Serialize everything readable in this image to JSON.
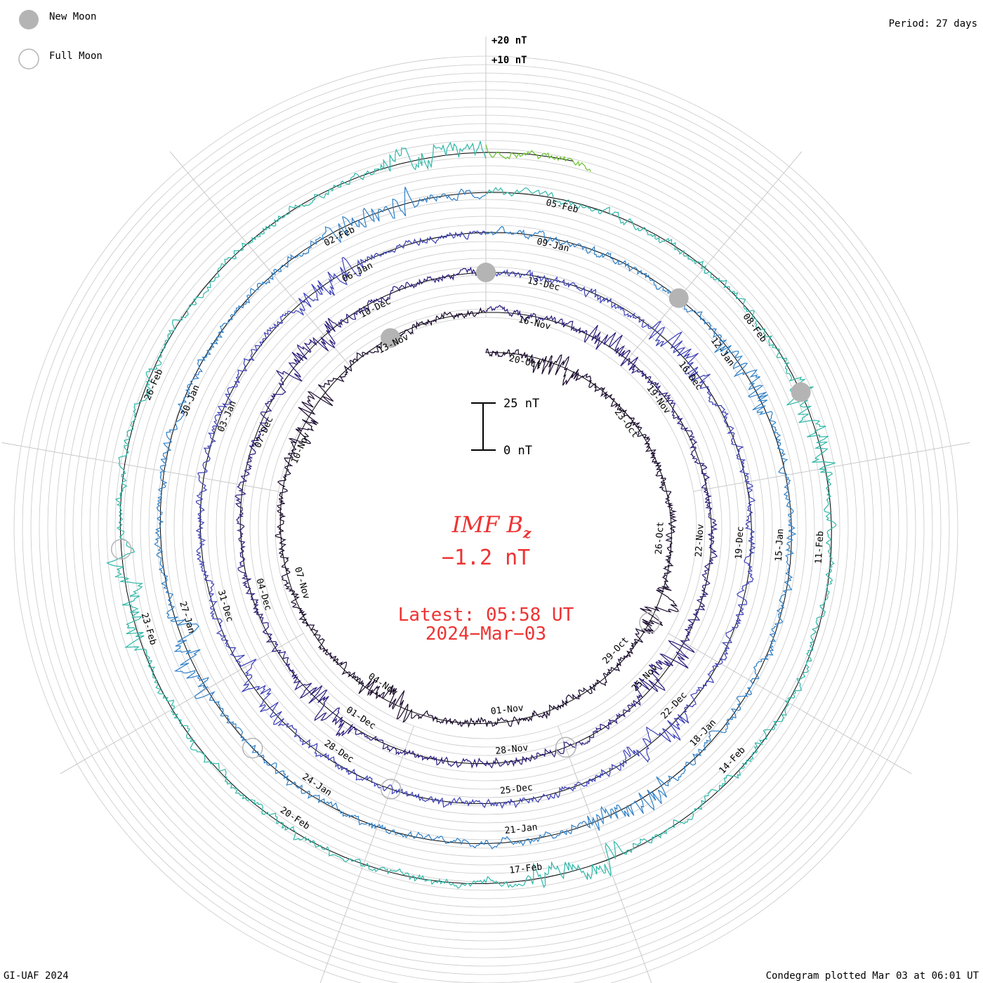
{
  "legend": {
    "new_moon": "New Moon",
    "full_moon": "Full Moon",
    "new_moon_color": "#b4b4b4",
    "full_moon_color": "#b4b4b4"
  },
  "period_label": "Period: 27 days",
  "footer_left": "GI-UAF 2024",
  "footer_right": "Condegram plotted Mar 03 at 06:01 UT",
  "center": {
    "title": "IMF B",
    "title_sub": "z",
    "value": "−1.2 nT",
    "latest": "Latest: 05:58 UT",
    "date": "2024−Mar−03",
    "accent": "#ee3333"
  },
  "chart_data": {
    "type": "line",
    "subtype": "condegram spiral",
    "title": "IMF Bz",
    "units": "nT",
    "period_days": 27,
    "start": "2023-10-19",
    "end": "2024-03-03T05:58",
    "latest_value": -1.2,
    "scale_bar": {
      "low": "0 nT",
      "high": "25 nT",
      "low_value": 0,
      "high_value": 25
    },
    "ring_ticks": [
      {
        "label": "+20 nT",
        "value": 20
      },
      {
        "label": "+10 nT",
        "value": 10
      }
    ],
    "colors": [
      "#1a0a2e",
      "#2a1a7a",
      "#3b3fb8",
      "#2e80c8",
      "#2eb8a8",
      "#6cc02e",
      "#b8a020",
      "#b87818",
      "#c06010",
      "#c82010"
    ],
    "date_labels": [
      "20-Oct",
      "23-Oct",
      "26-Oct",
      "29-Oct",
      "01-Nov",
      "04-Nov",
      "07-Nov",
      "10-Nov",
      "13-Nov",
      "16-Nov",
      "19-Nov",
      "22-Nov",
      "25-Nov",
      "28-Nov",
      "01-Dec",
      "04-Dec",
      "07-Dec",
      "10-Dec",
      "13-Dec",
      "16-Dec",
      "19-Dec",
      "22-Dec",
      "25-Dec",
      "28-Dec",
      "31-Dec",
      "03-Jan",
      "06-Jan",
      "09-Jan",
      "12-Jan",
      "15-Jan",
      "18-Jan",
      "21-Jan",
      "24-Jan",
      "27-Jan",
      "30-Jan",
      "02-Feb",
      "05-Feb",
      "08-Feb",
      "11-Feb",
      "14-Feb",
      "17-Feb",
      "20-Feb",
      "23-Feb",
      "26-Feb"
    ],
    "new_moon_dates": [
      "2023-11-13",
      "2023-12-12",
      "2024-01-11",
      "2024-02-09"
    ],
    "full_moon_dates": [
      "2023-10-28",
      "2023-11-27",
      "2023-12-27",
      "2024-01-25",
      "2024-02-24"
    ]
  }
}
